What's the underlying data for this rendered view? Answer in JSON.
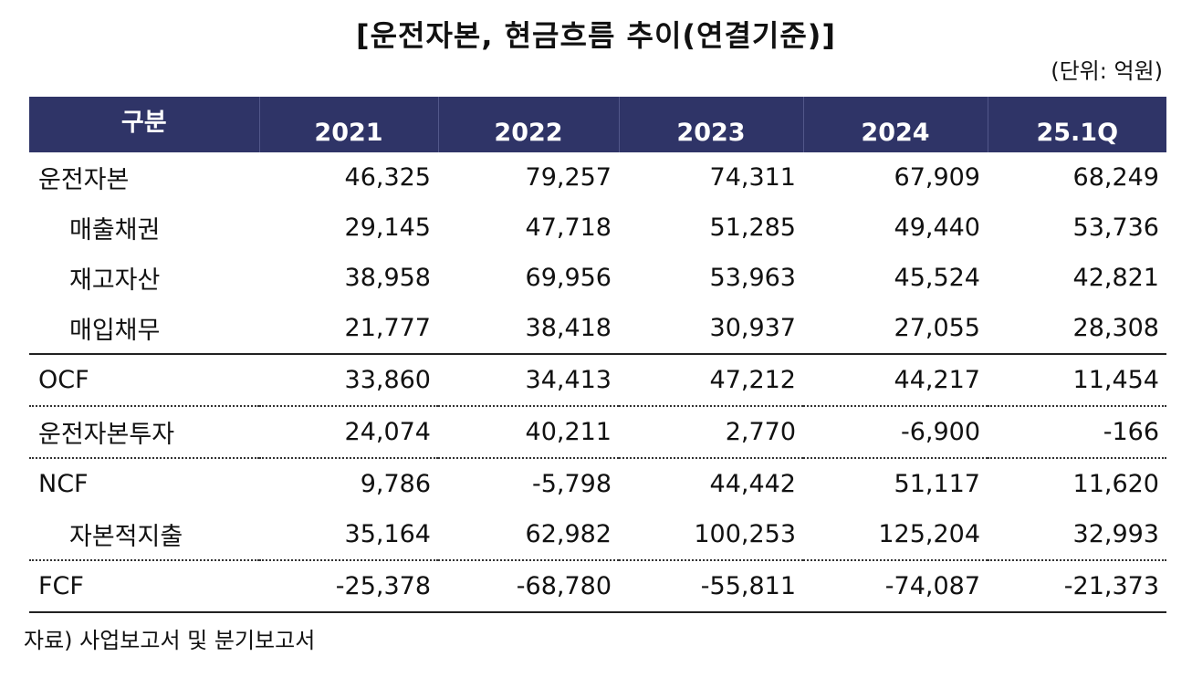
{
  "title": "[운전자본, 현금흐름 추이(연결기준)]",
  "unit": "(단위: 억원)",
  "table": {
    "header": {
      "label": "구분",
      "periods": [
        "2021",
        "2022",
        "2023",
        "2024",
        "25.1Q"
      ]
    },
    "rows": [
      {
        "label": "운전자본",
        "values": [
          "46,325",
          "79,257",
          "74,311",
          "67,909",
          "68,249"
        ]
      },
      {
        "label": "매출채권",
        "values": [
          "29,145",
          "47,718",
          "51,285",
          "49,440",
          "53,736"
        ]
      },
      {
        "label": "재고자산",
        "values": [
          "38,958",
          "69,956",
          "53,963",
          "45,524",
          "42,821"
        ]
      },
      {
        "label": "매입채무",
        "values": [
          "21,777",
          "38,418",
          "30,937",
          "27,055",
          "28,308"
        ]
      },
      {
        "label": "OCF",
        "values": [
          "33,860",
          "34,413",
          "47,212",
          "44,217",
          "11,454"
        ]
      },
      {
        "label": "운전자본투자",
        "values": [
          "24,074",
          "40,211",
          "2,770",
          "-6,900",
          "-166"
        ]
      },
      {
        "label": "NCF",
        "values": [
          "9,786",
          "-5,798",
          "44,442",
          "51,117",
          "11,620"
        ]
      },
      {
        "label": "자본적지출",
        "values": [
          "35,164",
          "62,982",
          "100,253",
          "125,204",
          "32,993"
        ]
      },
      {
        "label": "FCF",
        "values": [
          "-25,378",
          "-68,780",
          "-55,811",
          "-74,087",
          "-21,373"
        ]
      }
    ]
  },
  "source": "자료) 사업보고서 및 분기보고서"
}
